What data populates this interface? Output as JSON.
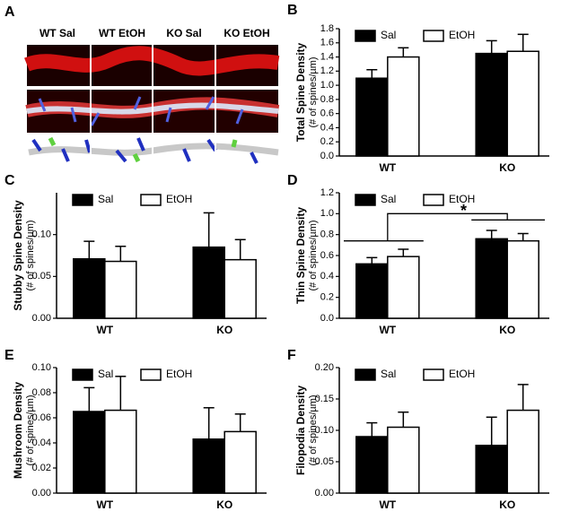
{
  "panel_a": {
    "letter": "A",
    "labels": [
      "WT Sal",
      "WT EtOH",
      "KO Sal",
      "KO EtOH"
    ]
  },
  "chart_data": [
    {
      "type": "bar",
      "letter": "B",
      "ylabel": "Total Spine Density",
      "yunit": "(# of spines/µm)",
      "categories": [
        "WT",
        "KO"
      ],
      "series": [
        {
          "name": "Sal",
          "color": "#000000",
          "values": [
            1.1,
            1.45
          ],
          "errors": [
            0.12,
            0.18
          ]
        },
        {
          "name": "EtOH",
          "color": "#ffffff",
          "values": [
            1.4,
            1.48
          ],
          "errors": [
            0.13,
            0.24
          ]
        }
      ],
      "ylim": [
        0,
        1.8
      ],
      "yticks": [
        {
          "value": 0,
          "label": "0.0"
        },
        0.2,
        0.4,
        0.6,
        0.8,
        {
          "value": 1,
          "label": "1.0"
        },
        1.2,
        1.4,
        1.6,
        1.8
      ]
    },
    {
      "type": "bar",
      "letter": "C",
      "ylabel": "Stubby Spine Density",
      "yunit": "(# of spines/µm)",
      "categories": [
        "WT",
        "KO"
      ],
      "series": [
        {
          "name": "Sal",
          "color": "#000000",
          "values": [
            0.071,
            0.085
          ],
          "errors": [
            0.021,
            0.041
          ]
        },
        {
          "name": "EtOH",
          "color": "#ffffff",
          "values": [
            0.068,
            0.07
          ],
          "errors": [
            0.018,
            0.024
          ]
        }
      ],
      "ylim": [
        0,
        0.15
      ],
      "yticks": [
        {
          "value": 0,
          "label": "0.00"
        },
        0.05,
        {
          "value": 0.1,
          "label": "0.10"
        }
      ]
    },
    {
      "type": "bar",
      "letter": "D",
      "ylabel": "Thin Spine Density",
      "yunit": "(# of spines/µm)",
      "categories": [
        "WT",
        "KO"
      ],
      "series": [
        {
          "name": "Sal",
          "color": "#000000",
          "values": [
            0.52,
            0.76
          ],
          "errors": [
            0.06,
            0.08
          ]
        },
        {
          "name": "EtOH",
          "color": "#ffffff",
          "values": [
            0.59,
            0.74
          ],
          "errors": [
            0.07,
            0.07
          ]
        }
      ],
      "ylim": [
        0,
        1.2
      ],
      "yticks": [
        {
          "value": 0,
          "label": "0.0"
        },
        0.2,
        0.4,
        0.6,
        0.8,
        {
          "value": 1,
          "label": "1.0"
        },
        1.2
      ],
      "annotation": "*"
    },
    {
      "type": "bar",
      "letter": "E",
      "ylabel": "Mushroom Density",
      "yunit": "(# of spines/µm)",
      "categories": [
        "WT",
        "KO"
      ],
      "series": [
        {
          "name": "Sal",
          "color": "#000000",
          "values": [
            0.065,
            0.043
          ],
          "errors": [
            0.019,
            0.025
          ]
        },
        {
          "name": "EtOH",
          "color": "#ffffff",
          "values": [
            0.066,
            0.049
          ],
          "errors": [
            0.027,
            0.014
          ]
        }
      ],
      "ylim": [
        0,
        0.1
      ],
      "yticks": [
        {
          "value": 0,
          "label": "0.00"
        },
        0.02,
        0.04,
        0.06,
        0.08,
        {
          "value": 0.1,
          "label": "0.10"
        }
      ]
    },
    {
      "type": "bar",
      "letter": "F",
      "ylabel": "Filopodia Density",
      "yunit": "(# of spines/µm)",
      "categories": [
        "WT",
        "KO"
      ],
      "series": [
        {
          "name": "Sal",
          "color": "#000000",
          "values": [
            0.09,
            0.076
          ],
          "errors": [
            0.022,
            0.045
          ]
        },
        {
          "name": "EtOH",
          "color": "#ffffff",
          "values": [
            0.105,
            0.132
          ],
          "errors": [
            0.024,
            0.041
          ]
        }
      ],
      "ylim": [
        0,
        0.2
      ],
      "yticks": [
        {
          "value": 0,
          "label": "0.00"
        },
        0.05,
        {
          "value": 0.1,
          "label": "0.10"
        },
        0.15,
        {
          "value": 0.2,
          "label": "0.20"
        }
      ]
    }
  ]
}
